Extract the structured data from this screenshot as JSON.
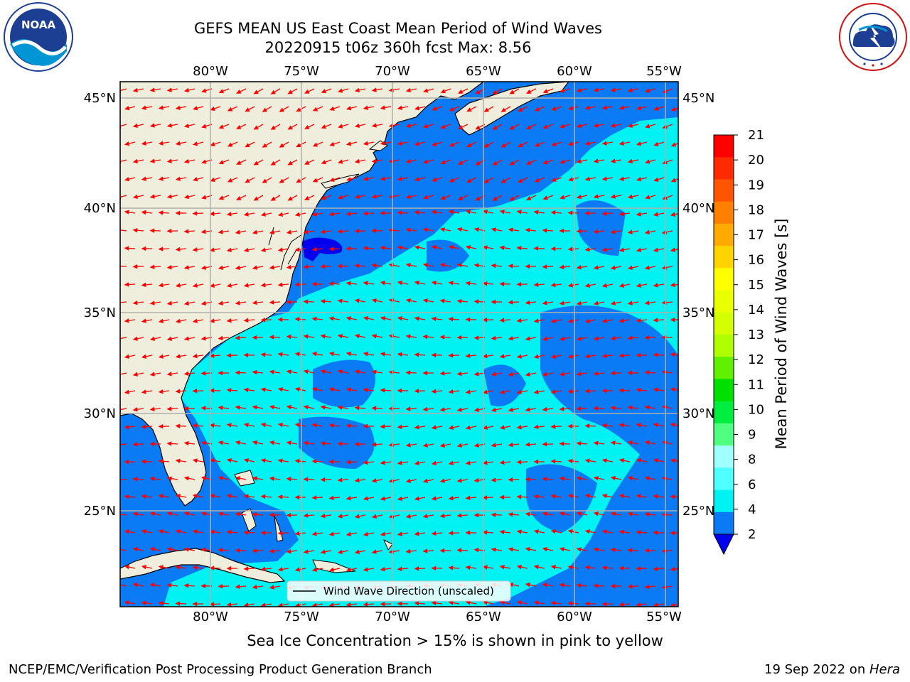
{
  "title": {
    "line1": "GEFS MEAN US East Coast Mean Period of Wind Waves",
    "line2": "20220915 t06z 360h fcst   Max: 8.56"
  },
  "map": {
    "lon_labels": [
      "80°W",
      "75°W",
      "70°W",
      "65°W",
      "60°W",
      "55°W"
    ],
    "lat_labels": [
      "45°N",
      "40°N",
      "35°N",
      "30°N",
      "25°N"
    ],
    "legend_label": "Wind Wave Direction (unscaled)",
    "colors": {
      "land": "#efeedc",
      "period_2_4": "#0a7af5",
      "period_4_6": "#00f2f2",
      "period_below_2": "#0000ee",
      "arrow": "#ff0000",
      "grid": "#b0b0b0"
    }
  },
  "colorbar": {
    "label": "Mean Period of Wind Waves [s]",
    "ticks": [
      "21",
      "20",
      "19",
      "18",
      "17",
      "16",
      "15",
      "14",
      "13",
      "12",
      "11",
      "10",
      "9",
      "8",
      "6",
      "4",
      "2"
    ],
    "colors": [
      "#ff0000",
      "#ff2a00",
      "#ff5500",
      "#ff8000",
      "#ffaa00",
      "#ffd400",
      "#ffff00",
      "#eaff00",
      "#d4ff00",
      "#b0ff00",
      "#60f000",
      "#00e000",
      "#00ee40",
      "#50ff80",
      "#a0ffff",
      "#50ffff",
      "#00f2f2",
      "#0a7af5"
    ],
    "extend_color": "#0000ee"
  },
  "footer": {
    "subtitle": "Sea Ice Concentration > 15% is shown in pink to yellow",
    "credit": "NCEP/EMC/Verification Post Processing Product Generation Branch",
    "stamp_date": "19 Sep 2022 on ",
    "stamp_host": "Hera"
  },
  "logos": {
    "noaa": "NOAA",
    "nws": "NATIONAL WEATHER SERVICE"
  }
}
